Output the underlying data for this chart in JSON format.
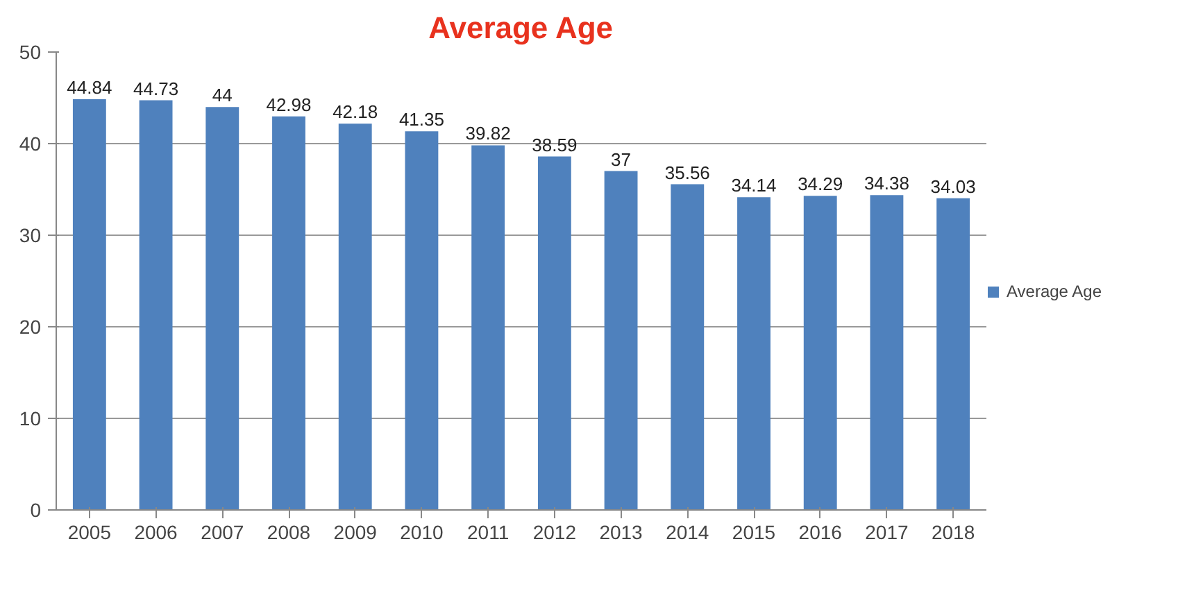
{
  "chart_data": {
    "type": "bar",
    "title": "Average Age",
    "categories": [
      "2005",
      "2006",
      "2007",
      "2008",
      "2009",
      "2010",
      "2011",
      "2012",
      "2013",
      "2014",
      "2015",
      "2016",
      "2017",
      "2018"
    ],
    "series": [
      {
        "name": "Average Age",
        "color": "#4f81bd",
        "values": [
          44.84,
          44.73,
          44,
          42.98,
          42.18,
          41.35,
          39.82,
          38.59,
          37,
          35.56,
          34.14,
          34.29,
          34.38,
          34.03
        ]
      }
    ],
    "ylim": [
      0,
      50
    ],
    "yticks": [
      0,
      10,
      20,
      30,
      40,
      50
    ],
    "grid": "y",
    "legend": "right",
    "data_labels": true
  }
}
